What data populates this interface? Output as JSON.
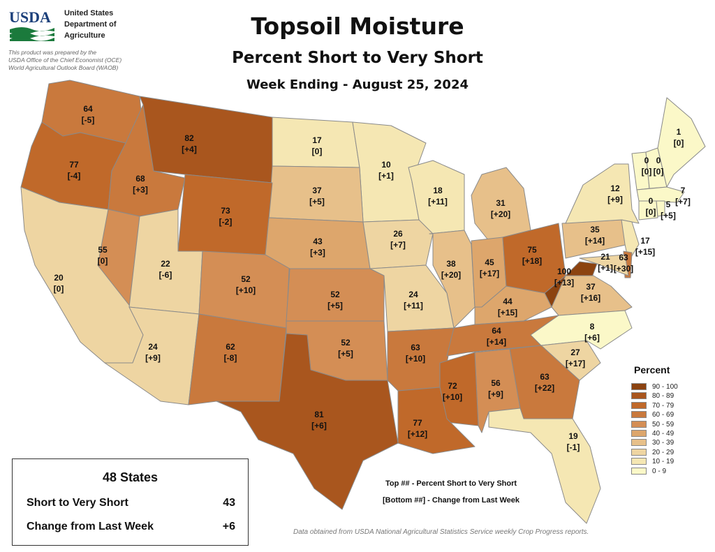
{
  "header": {
    "title": "Topsoil Moisture",
    "subtitle": "Percent Short to Very Short",
    "week": "Week Ending - August 25, 2024",
    "logo_text": "USDA",
    "agency_lines": [
      "United States",
      "Department of",
      "Agriculture"
    ],
    "prepared_lines": [
      "This product was prepared by the",
      "USDA Office of the Chief Economist (OCE)",
      "World Agricultural Outlook Board (WAOB)"
    ]
  },
  "legend": {
    "title": "Percent",
    "bins": [
      {
        "label": "90 - 100",
        "color": "#8c4310"
      },
      {
        "label": "80 - 89",
        "color": "#a9561e"
      },
      {
        "label": "70 - 79",
        "color": "#c0692a"
      },
      {
        "label": "60 - 69",
        "color": "#c9793d"
      },
      {
        "label": "50 - 59",
        "color": "#d48e55"
      },
      {
        "label": "40 - 49",
        "color": "#dda66c"
      },
      {
        "label": "30 - 39",
        "color": "#e7c08a"
      },
      {
        "label": "20 - 29",
        "color": "#eed5a2"
      },
      {
        "label": "10 - 19",
        "color": "#f5e7b3"
      },
      {
        "label": "0 - 9",
        "color": "#fbf8c8"
      }
    ]
  },
  "states": [
    {
      "state": "WA",
      "value": "64",
      "change": "[-5]"
    },
    {
      "state": "OR",
      "value": "77",
      "change": "[-4]"
    },
    {
      "state": "ID",
      "value": "68",
      "change": "[+3]"
    },
    {
      "state": "MT",
      "value": "82",
      "change": "[+4]"
    },
    {
      "state": "ND",
      "value": "17",
      "change": "[0]"
    },
    {
      "state": "MN",
      "value": "10",
      "change": "[+1]"
    },
    {
      "state": "WI",
      "value": "18",
      "change": "[+11]"
    },
    {
      "state": "MI",
      "value": "31",
      "change": "[+20]"
    },
    {
      "state": "SD",
      "value": "37",
      "change": "[+5]"
    },
    {
      "state": "WY",
      "value": "73",
      "change": "[-2]"
    },
    {
      "state": "NV",
      "value": "55",
      "change": "[0]"
    },
    {
      "state": "CA",
      "value": "20",
      "change": "[0]"
    },
    {
      "state": "UT",
      "value": "22",
      "change": "[-6]"
    },
    {
      "state": "CO",
      "value": "52",
      "change": "[+10]"
    },
    {
      "state": "NE",
      "value": "43",
      "change": "[+3]"
    },
    {
      "state": "IA",
      "value": "26",
      "change": "[+7]"
    },
    {
      "state": "IL",
      "value": "38",
      "change": "[+20]"
    },
    {
      "state": "IN",
      "value": "45",
      "change": "[+17]"
    },
    {
      "state": "OH",
      "value": "75",
      "change": "[+18]"
    },
    {
      "state": "PA",
      "value": "35",
      "change": "[+14]"
    },
    {
      "state": "NY",
      "value": "12",
      "change": "[+9]"
    },
    {
      "state": "VT",
      "value": "0",
      "change": "[0]"
    },
    {
      "state": "NH",
      "value": "0",
      "change": "[0]"
    },
    {
      "state": "ME",
      "value": "1",
      "change": "[0]"
    },
    {
      "state": "MA",
      "value": "7",
      "change": "[+7]"
    },
    {
      "state": "CT",
      "value": "0",
      "change": "[0]"
    },
    {
      "state": "RI",
      "value": "5",
      "change": "[+5]"
    },
    {
      "state": "NJ",
      "value": "17",
      "change": "[+15]"
    },
    {
      "state": "DE",
      "value": "63",
      "change": "[+30]"
    },
    {
      "state": "MD",
      "value": "21",
      "change": "[+1]"
    },
    {
      "state": "WV",
      "value": "100",
      "change": "[+13]"
    },
    {
      "state": "VA",
      "value": "37",
      "change": "[+16]"
    },
    {
      "state": "KY",
      "value": "44",
      "change": "[+15]"
    },
    {
      "state": "KS",
      "value": "52",
      "change": "[+5]"
    },
    {
      "state": "MO",
      "value": "24",
      "change": "[+11]"
    },
    {
      "state": "AZ",
      "value": "24",
      "change": "[+9]"
    },
    {
      "state": "NM",
      "value": "62",
      "change": "[-8]"
    },
    {
      "state": "OK",
      "value": "52",
      "change": "[+5]"
    },
    {
      "state": "AR",
      "value": "63",
      "change": "[+10]"
    },
    {
      "state": "TN",
      "value": "64",
      "change": "[+14]"
    },
    {
      "state": "NC",
      "value": "8",
      "change": "[+6]"
    },
    {
      "state": "SC",
      "value": "27",
      "change": "[+17]"
    },
    {
      "state": "GA",
      "value": "63",
      "change": "[+22]"
    },
    {
      "state": "AL",
      "value": "56",
      "change": "[+9]"
    },
    {
      "state": "MS",
      "value": "72",
      "change": "[+10]"
    },
    {
      "state": "LA",
      "value": "77",
      "change": "[+12]"
    },
    {
      "state": "TX",
      "value": "81",
      "change": "[+6]"
    },
    {
      "state": "FL",
      "value": "19",
      "change": "[-1]"
    }
  ],
  "notes": {
    "top": "Top ## - Percent Short to Very Short",
    "bottom": "[Bottom ##] - Change from Last Week"
  },
  "summary": {
    "heading": "48 States",
    "rows": [
      {
        "label": "Short to Very Short",
        "value": "43"
      },
      {
        "label": "Change from Last Week",
        "value": "+6"
      }
    ]
  },
  "source": "Data obtained from USDA National Agricultural Statistics Service weekly Crop Progress reports."
}
